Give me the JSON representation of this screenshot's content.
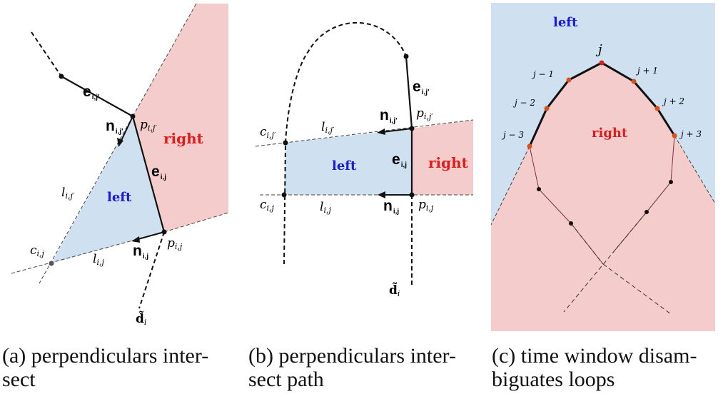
{
  "colors": {
    "left_region": "#cfe0f1",
    "right_region": "#f5cccc",
    "left_text": "#1a1ad8",
    "right_text": "#dd1c1c",
    "node_orange": "#d8501b",
    "node_red": "#d42020"
  },
  "panel_a": {
    "right": "right",
    "left": "left",
    "e_ij_prime": "e",
    "e_ij_prime_sub": "i,j'",
    "e_ij": "e",
    "e_ij_sub": "i,j",
    "n_ij_prime": "n",
    "n_ij_prime_sub": "i,j'",
    "n_ij": "n",
    "n_ij_sub": "i,j",
    "p_ij_prime": "p",
    "p_ij_prime_sub": "i,j′",
    "p_ij": "p",
    "p_ij_sub": "i,j",
    "c_ij": "c",
    "c_ij_sub": "i,j",
    "l_ij_prime": "l",
    "l_ij_prime_sub": "i,j′",
    "l_ij": "l",
    "l_ij_sub": "i,j",
    "d_i": "d̃",
    "d_i_sub": "i",
    "caption": "(a) perpendiculars inter-",
    "caption2": "sect"
  },
  "panel_b": {
    "right": "right",
    "left": "left",
    "e_ij_prime": "e",
    "e_ij_prime_sub": "i,j'",
    "e_ij": "e",
    "e_ij_sub": "i,j",
    "n_ij_prime": "n",
    "n_ij_prime_sub": "i,j'",
    "n_ij": "n",
    "n_ij_sub": "i,j",
    "p_ij_prime": "p",
    "p_ij_prime_sub": "i,j′",
    "p_ij": "p",
    "p_ij_sub": "i,j",
    "c_ij_prime": "c",
    "c_ij_prime_sub": "i,j′",
    "c_ij": "c",
    "c_ij_sub": "i,j",
    "l_ij_prime": "l",
    "l_ij_prime_sub": "i,j′",
    "l_ij": "l",
    "l_ij_sub": "i,j",
    "d_i": "d̃",
    "d_i_sub": "i",
    "caption": "(b) perpendiculars inter-",
    "caption2": "sect path"
  },
  "panel_c": {
    "left": "left",
    "right": "right",
    "j": "j",
    "jm1": "j − 1",
    "jp1": "j + 1",
    "jm2": "j − 2",
    "jp2": "j + 2",
    "jm3": "j − 3",
    "jp3": "j + 3",
    "caption": "(c) time window disam-",
    "caption2": "biguates loops"
  }
}
